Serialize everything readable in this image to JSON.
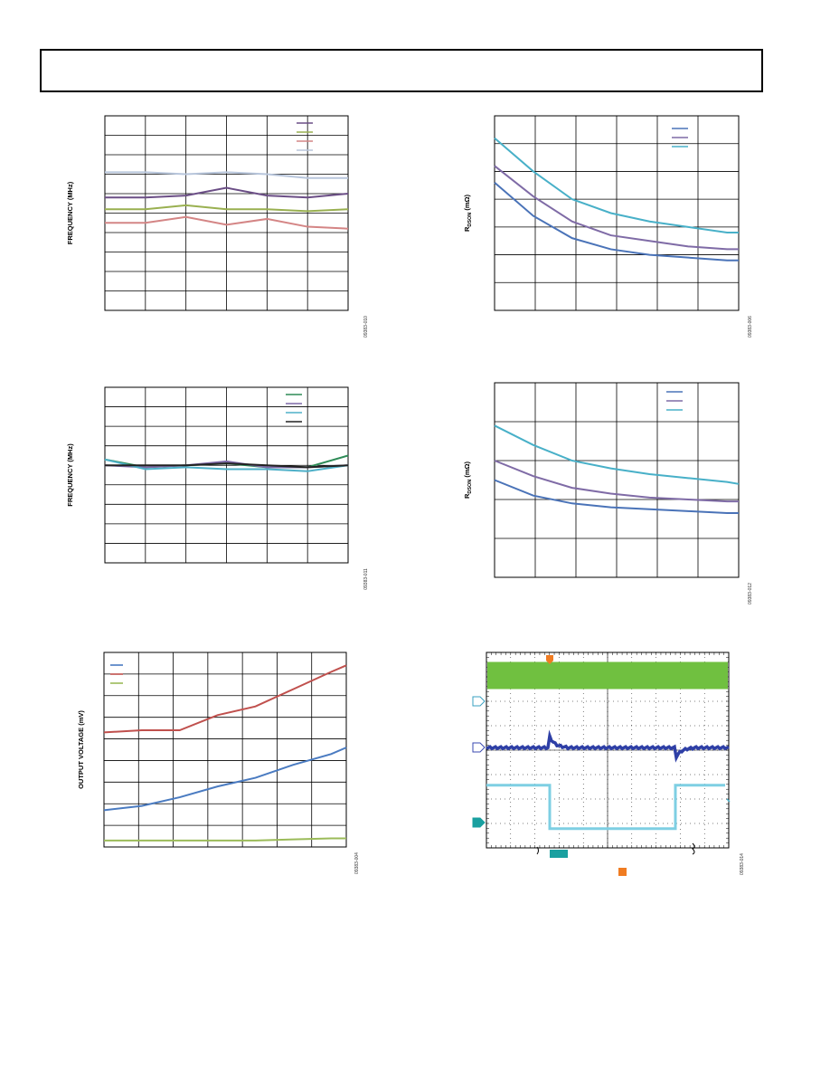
{
  "chart_data": [
    {
      "type": "line",
      "ylabel": "FREQUENCY (MHz)",
      "code": "09383-010",
      "x": [
        0,
        1,
        2,
        3,
        4,
        5,
        6
      ],
      "xlim": [
        0,
        6
      ],
      "ylim": [
        0,
        10
      ],
      "grid": true,
      "legend_placement": "top-right",
      "series": [
        {
          "color": "#6b4e86",
          "values": [
            5.8,
            5.8,
            5.9,
            6.3,
            5.9,
            5.8,
            6.0
          ]
        },
        {
          "color": "#99b050",
          "values": [
            5.2,
            5.2,
            5.4,
            5.2,
            5.2,
            5.1,
            5.2
          ]
        },
        {
          "color": "#d48585",
          "values": [
            4.5,
            4.5,
            4.8,
            4.4,
            4.7,
            4.3,
            4.2
          ]
        },
        {
          "color": "#b8c6dc",
          "values": [
            7.1,
            7.1,
            7.0,
            7.1,
            7.0,
            6.8,
            6.8
          ]
        }
      ]
    },
    {
      "type": "line",
      "ylabel": "R_DSON (mΩ)",
      "code": "09383-006",
      "x": [
        0,
        1,
        2,
        3,
        4,
        5,
        6,
        6.3
      ],
      "xlim": [
        0,
        6.3
      ],
      "ylim": [
        0,
        7
      ],
      "grid": true,
      "legend_placement": "top-right",
      "series": [
        {
          "color": "#4a73b8",
          "values": [
            4.6,
            3.4,
            2.6,
            2.2,
            2.0,
            1.9,
            1.8,
            1.8
          ]
        },
        {
          "color": "#7f6ba6",
          "values": [
            5.2,
            4.1,
            3.2,
            2.7,
            2.5,
            2.3,
            2.2,
            2.2
          ]
        },
        {
          "color": "#48b0c8",
          "values": [
            6.2,
            5.0,
            4.0,
            3.5,
            3.2,
            3.0,
            2.8,
            2.8
          ]
        }
      ]
    },
    {
      "type": "line",
      "ylabel": "FREQUENCY (MHz)",
      "code": "09383-011",
      "x": [
        0,
        1,
        2,
        3,
        4,
        5,
        6
      ],
      "xlim": [
        0,
        6
      ],
      "ylim": [
        0,
        9
      ],
      "grid": true,
      "legend_placement": "top-right",
      "series": [
        {
          "color": "#2e8b57",
          "values": [
            5.3,
            4.9,
            5.0,
            5.1,
            4.9,
            4.9,
            5.5
          ]
        },
        {
          "color": "#7e6aa8",
          "values": [
            5.0,
            4.9,
            5.0,
            5.2,
            4.9,
            4.9,
            5.0
          ]
        },
        {
          "color": "#4eb0c8",
          "values": [
            5.3,
            4.8,
            4.9,
            4.8,
            4.8,
            4.7,
            5.0
          ]
        },
        {
          "color": "#222222",
          "values": [
            5.0,
            5.0,
            5.0,
            5.1,
            5.0,
            4.9,
            5.0
          ]
        }
      ]
    },
    {
      "type": "line",
      "ylabel": "R_DSON (mΩ)",
      "code": "09383-012",
      "x": [
        0,
        1,
        2,
        3,
        4,
        5,
        6,
        6.3
      ],
      "xlim": [
        0,
        6.3
      ],
      "ylim": [
        0,
        5
      ],
      "grid": true,
      "legend_placement": "top-right",
      "series": [
        {
          "color": "#4a73b8",
          "values": [
            2.5,
            2.1,
            1.9,
            1.8,
            1.75,
            1.7,
            1.65,
            1.65
          ]
        },
        {
          "color": "#7f6ba6",
          "values": [
            3.0,
            2.6,
            2.3,
            2.15,
            2.05,
            2.0,
            1.95,
            1.95
          ]
        },
        {
          "color": "#48b0c8",
          "values": [
            3.9,
            3.4,
            3.0,
            2.8,
            2.65,
            2.55,
            2.45,
            2.4
          ]
        }
      ]
    },
    {
      "type": "line",
      "ylabel": "OUTPUT VOLTAGE (mV)",
      "code": "09383-004",
      "x": [
        0,
        1,
        2,
        3,
        4,
        5,
        6,
        6.4
      ],
      "xlim": [
        0,
        6.4
      ],
      "ylim": [
        0,
        9
      ],
      "grid": true,
      "legend_placement": "top-left",
      "series": [
        {
          "color": "#4a7bc1",
          "values": [
            1.7,
            1.9,
            2.3,
            2.8,
            3.2,
            3.8,
            4.3,
            4.6
          ]
        },
        {
          "color": "#c0504d",
          "values": [
            5.3,
            5.4,
            5.4,
            6.1,
            6.5,
            7.3,
            8.1,
            8.4
          ]
        },
        {
          "color": "#9bbb59",
          "values": [
            0.3,
            0.3,
            0.3,
            0.3,
            0.3,
            0.35,
            0.4,
            0.4
          ]
        }
      ]
    },
    {
      "type": "scope",
      "code": "09383-014",
      "grid": true,
      "traces": [
        {
          "color": "#70c040",
          "kind": "ripple-band",
          "level": 7.5
        },
        {
          "color": "#2e3fa6",
          "kind": "transient",
          "level": 5.1
        },
        {
          "color": "#7ecfe3",
          "kind": "step",
          "high": 3.6,
          "low": 1.9
        }
      ],
      "markers": {
        "trigger_color": "#f07c22",
        "channel_color": "#1aa0a0"
      }
    }
  ]
}
